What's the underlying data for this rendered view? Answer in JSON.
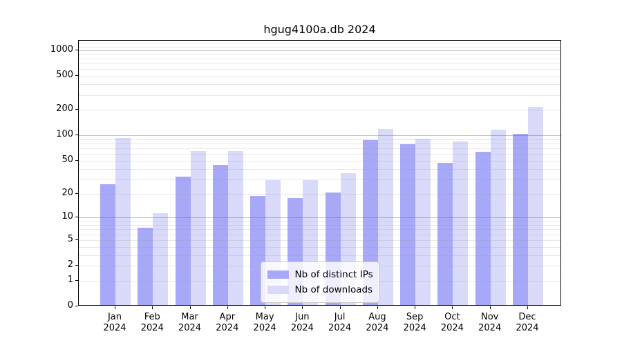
{
  "title": "hgug4100a.db 2024",
  "chart_data": {
    "type": "bar",
    "title": "hgug4100a.db 2024",
    "categories": [
      {
        "month": "Jan",
        "year": "2024"
      },
      {
        "month": "Feb",
        "year": "2024"
      },
      {
        "month": "Mar",
        "year": "2024"
      },
      {
        "month": "Apr",
        "year": "2024"
      },
      {
        "month": "May",
        "year": "2024"
      },
      {
        "month": "Jun",
        "year": "2024"
      },
      {
        "month": "Jul",
        "year": "2024"
      },
      {
        "month": "Aug",
        "year": "2024"
      },
      {
        "month": "Sep",
        "year": "2024"
      },
      {
        "month": "Oct",
        "year": "2024"
      },
      {
        "month": "Nov",
        "year": "2024"
      },
      {
        "month": "Dec",
        "year": "2024"
      }
    ],
    "series": [
      {
        "name": "Nb of distinct IPs",
        "color": "#a8a8f8",
        "values": [
          25,
          7,
          31,
          43,
          18,
          17,
          20,
          85,
          76,
          45,
          62,
          101
        ]
      },
      {
        "name": "Nb of downloads",
        "color": "#d9d9fa",
        "values": [
          90,
          11,
          63,
          63,
          28,
          28,
          34,
          115,
          88,
          82,
          113,
          210
        ]
      }
    ],
    "y_axis": {
      "scale": "log10(value+1)",
      "ticks": [
        0,
        1,
        2,
        5,
        10,
        20,
        50,
        100,
        200,
        500,
        1000
      ],
      "major_grid_values": [
        10,
        100,
        1000
      ],
      "minor_grid_values": [
        1,
        2,
        3,
        4,
        5,
        6,
        7,
        8,
        9,
        20,
        30,
        40,
        50,
        60,
        70,
        80,
        90,
        200,
        300,
        400,
        500,
        600,
        700,
        800,
        900,
        1100,
        1200
      ]
    },
    "xlabel": "",
    "ylabel": "",
    "legend_position": "lower center",
    "grid": true
  },
  "colors": {
    "background": "#ffffff",
    "axis": "#000000",
    "major_grid": "#c0c0c0",
    "minor_grid": "#e8e8e8",
    "distinct_ips": "#a8a8f8",
    "downloads": "#d9d9fa"
  }
}
